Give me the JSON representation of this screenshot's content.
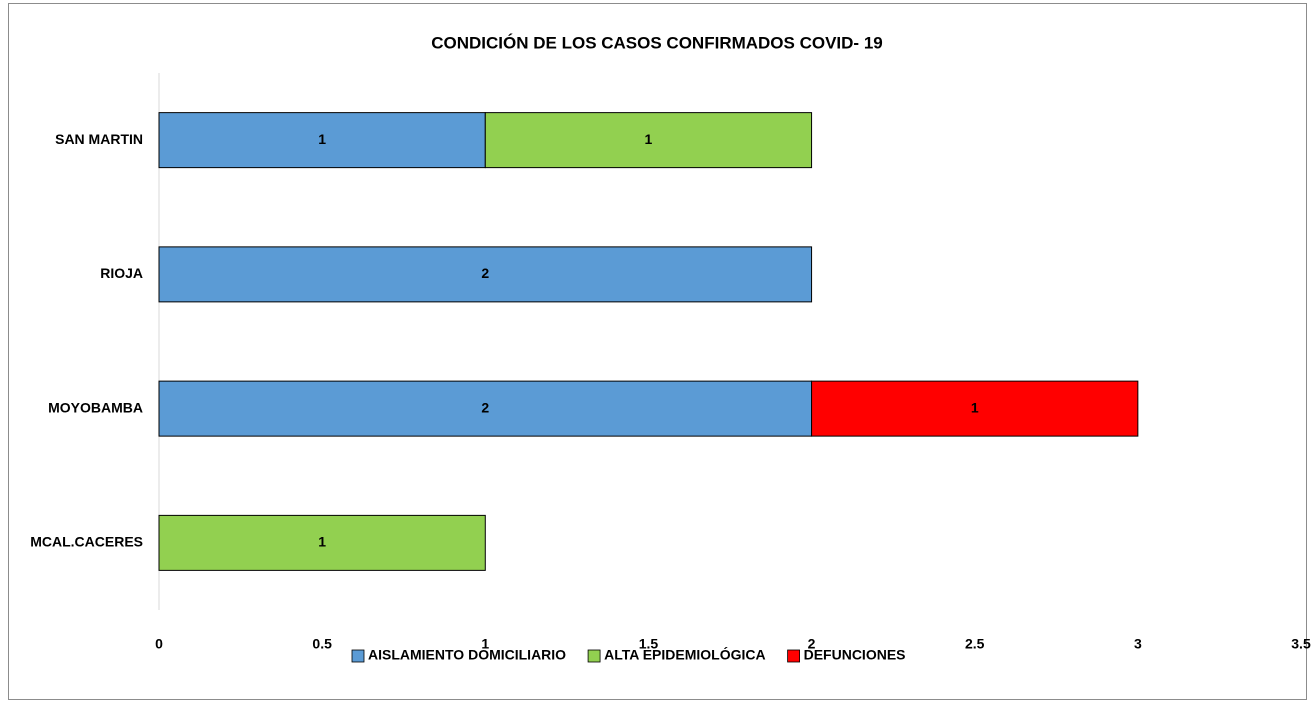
{
  "chart_data": {
    "type": "stacked-bar-horizontal",
    "title": "CONDICIÓN DE LOS CASOS CONFIRMADOS COVID- 19",
    "categories": [
      "SAN MARTIN",
      "RIOJA",
      "MOYOBAMBA",
      "MCAL.CACERES"
    ],
    "series": [
      {
        "name": "AISLAMIENTO DOMICILIARIO",
        "color": "#5b9bd5",
        "values": [
          1,
          2,
          2,
          null
        ]
      },
      {
        "name": "ALTA EPIDEMIOLÓGICA",
        "color": "#92d050",
        "values": [
          1,
          null,
          null,
          1
        ]
      },
      {
        "name": "DEFUNCIONES",
        "color": "#ff0000",
        "values": [
          null,
          null,
          1,
          null
        ]
      }
    ],
    "xlim": [
      0,
      3.5
    ],
    "xticks": [
      0,
      0.5,
      1,
      1.5,
      2,
      2.5,
      3,
      3.5
    ],
    "legend": "bottom",
    "grid": false
  }
}
